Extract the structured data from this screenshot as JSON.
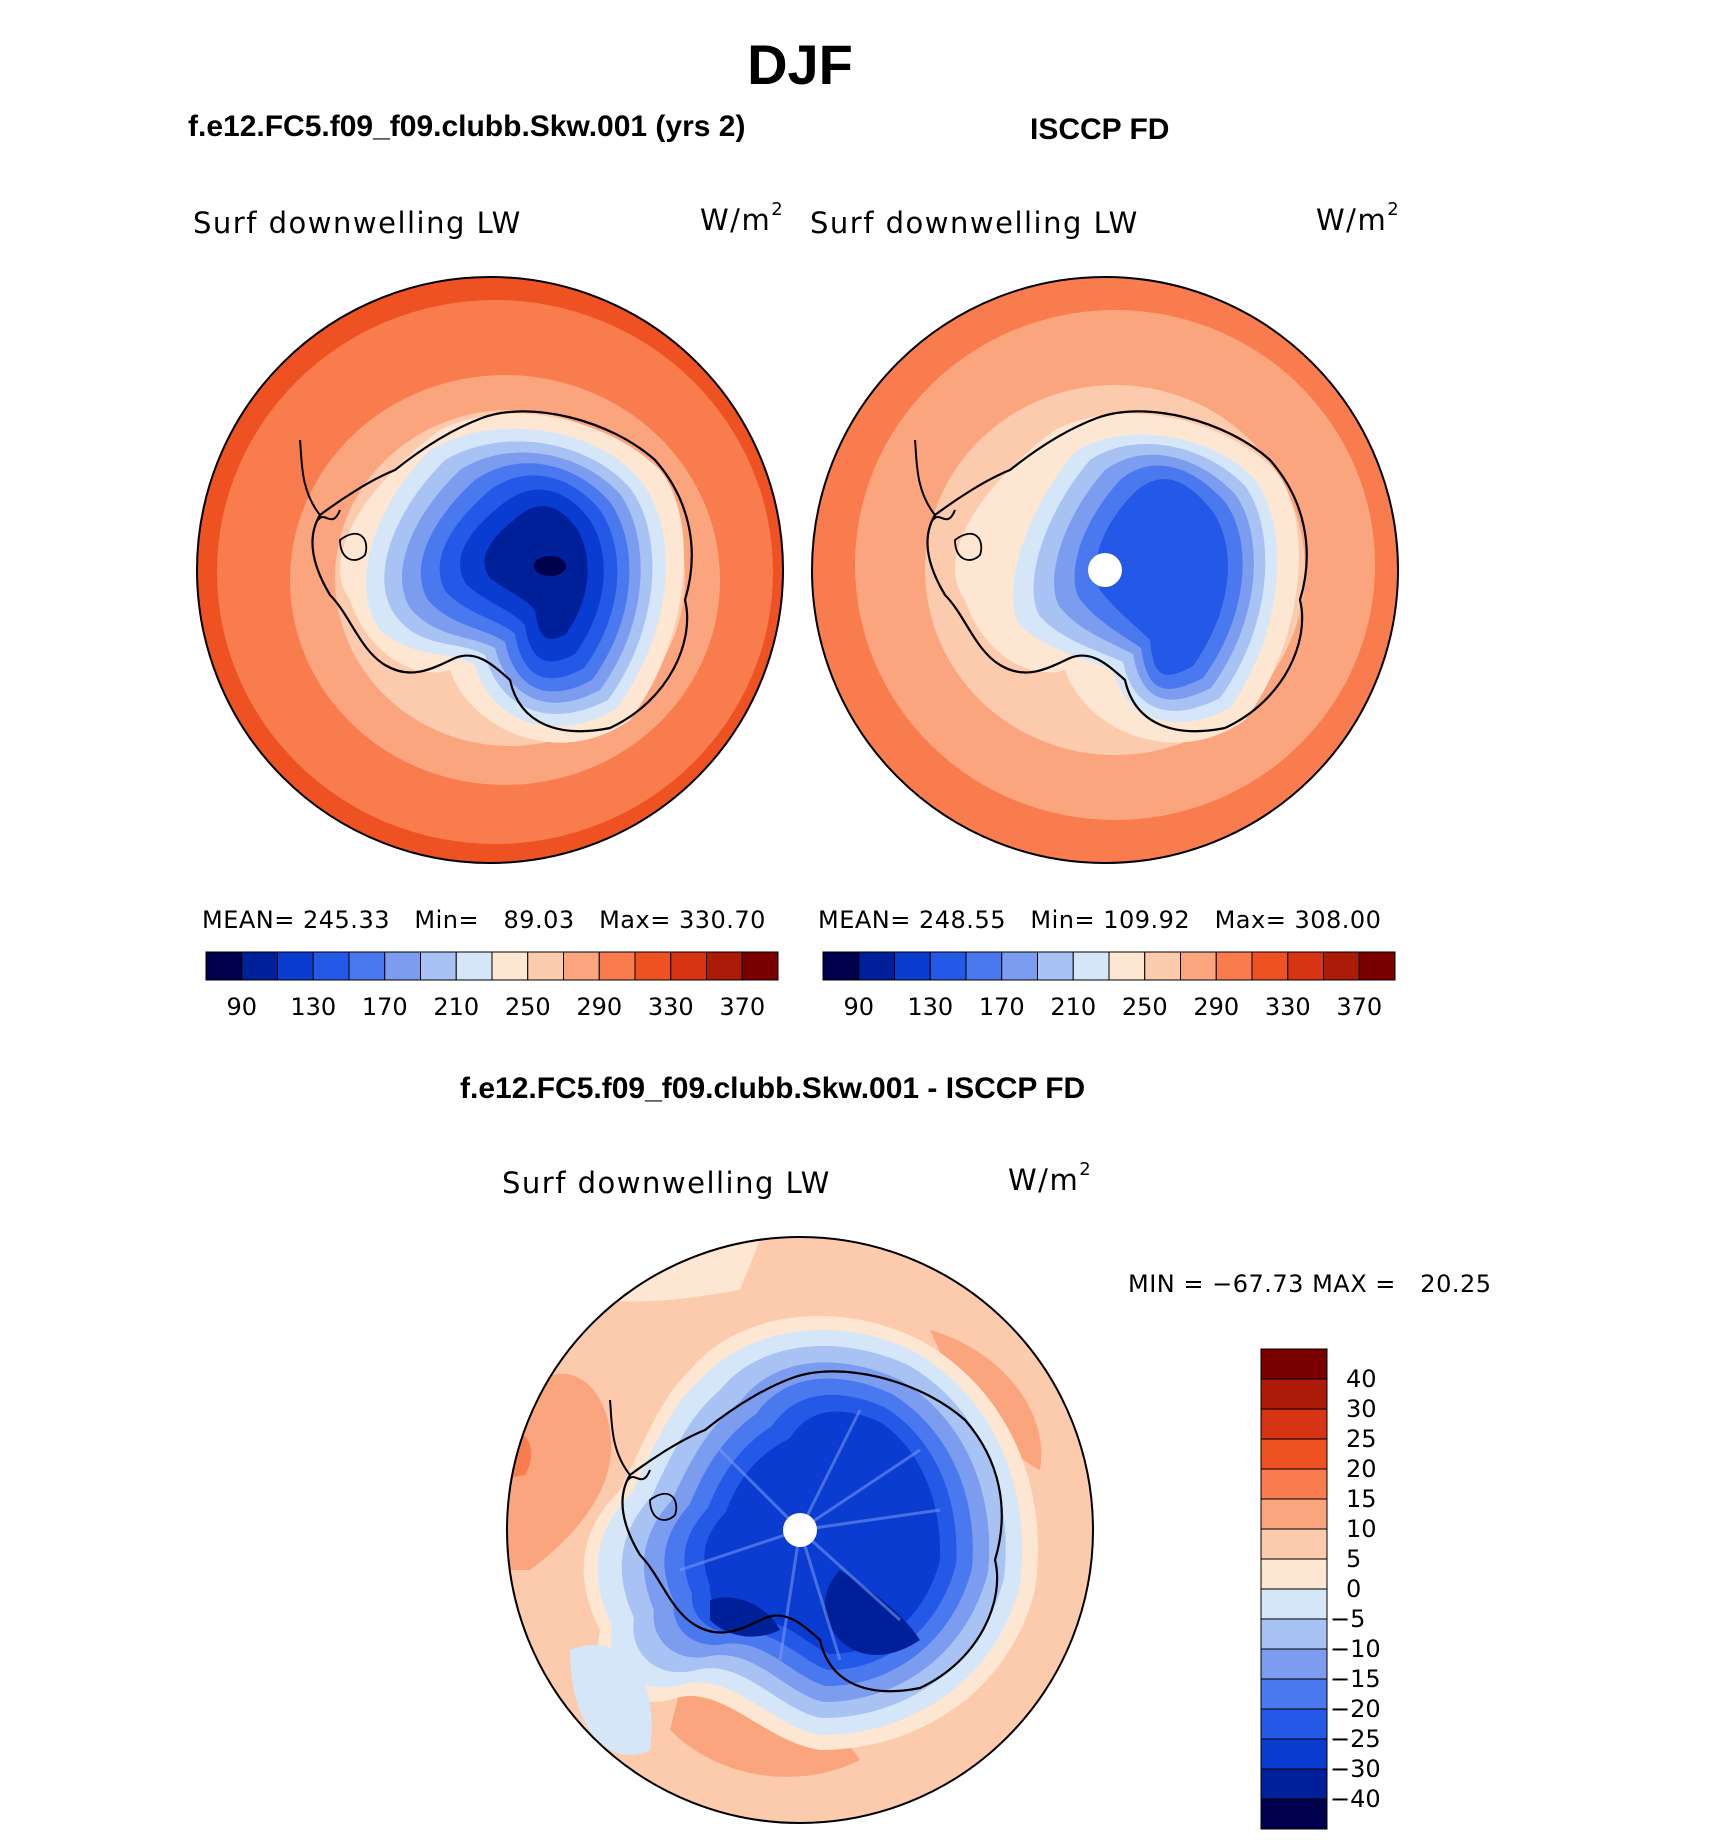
{
  "title": "DJF",
  "panels": [
    {
      "name": "f.e12.FC5.f09_f09.clubb.Skw.001 (yrs 2)",
      "variable": "Surf downwelling LW",
      "units_base": "W/m",
      "units_exp": "2",
      "stats": {
        "mean_label": "MEAN=",
        "mean": "245.33",
        "min_label": "Min=",
        "min": "89.03",
        "max_label": "Max=",
        "max": "330.70"
      },
      "polar_hole": false
    },
    {
      "name": "ISCCP FD",
      "variable": "Surf downwelling LW",
      "units_base": "W/m",
      "units_exp": "2",
      "stats": {
        "mean_label": "MEAN=",
        "mean": "248.55",
        "min_label": "Min=",
        "min": "109.92",
        "max_label": "Max=",
        "max": "308.00"
      },
      "polar_hole": true
    }
  ],
  "abs_colorbar": {
    "ticks": [
      "90",
      "130",
      "170",
      "210",
      "250",
      "290",
      "330",
      "370"
    ],
    "colors": [
      "#00004c",
      "#00209a",
      "#0a3cd2",
      "#2458e6",
      "#4a78ee",
      "#7c9cf0",
      "#a8c2f4",
      "#d4e6f8",
      "#fde6d2",
      "#fccaac",
      "#fba57e",
      "#f87c4e",
      "#ef5222",
      "#d63412",
      "#ac1a08",
      "#7a0000"
    ]
  },
  "diff": {
    "name": "f.e12.FC5.f09_f09.clubb.Skw.001 - ISCCP FD",
    "variable": "Surf downwelling LW",
    "units_base": "W/m",
    "units_exp": "2",
    "stats": {
      "min_label": "MIN =",
      "min": "−67.73",
      "max_label": "MAX =",
      "max": "20.25"
    },
    "colorbar": {
      "ticks": [
        "40",
        "30",
        "25",
        "20",
        "15",
        "10",
        "5",
        "0",
        "−5",
        "−10",
        "−15",
        "−20",
        "−25",
        "−30",
        "−40"
      ],
      "colors": [
        "#7a0000",
        "#ac1a08",
        "#d63412",
        "#ef5222",
        "#f87c4e",
        "#fba57e",
        "#fccaac",
        "#fde6d2",
        "#d4e6f8",
        "#a8c2f4",
        "#7c9cf0",
        "#4a78ee",
        "#2458e6",
        "#0a3cd2",
        "#00209a",
        "#00004c"
      ]
    }
  }
}
